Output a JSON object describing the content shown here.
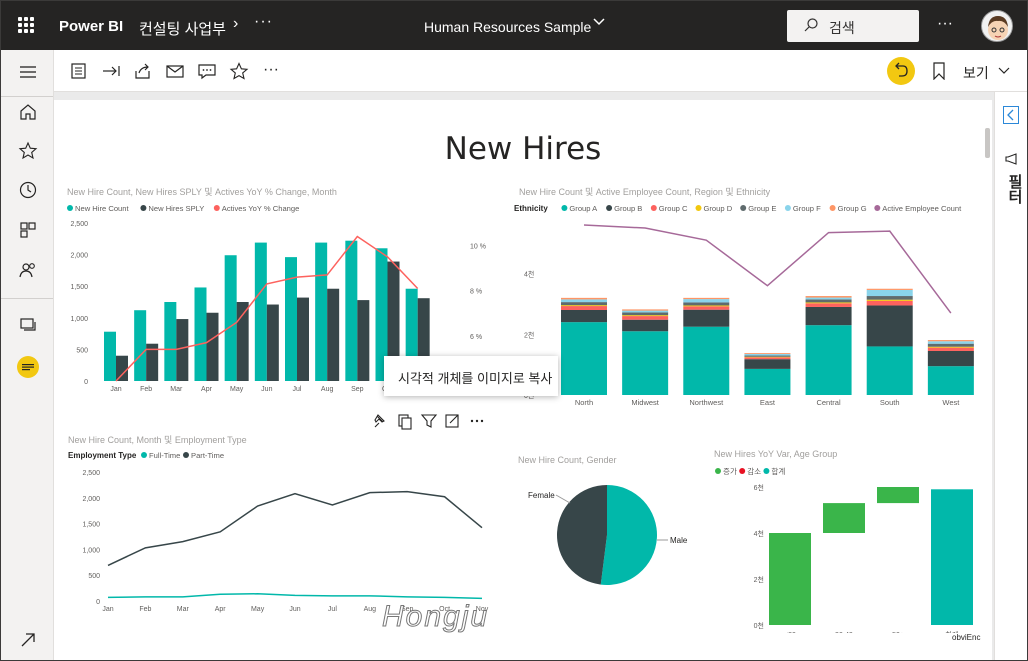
{
  "topbar": {
    "brand": "Power BI",
    "workspace": "컨설팅 사업부",
    "more": "···",
    "report_title": "Human Resources Sample",
    "search_placeholder": "검색",
    "more_right": "···"
  },
  "toolbar": {
    "view_label": "보기",
    "more": "···"
  },
  "right_panel": {
    "filters_label": "필터"
  },
  "page": {
    "title": "New Hires",
    "tooltip": "시각적 개체를 이미지로 복사",
    "watermark": "Hongju",
    "footer_brand": "obviEnc"
  },
  "colors": {
    "teal": "#01b8aa",
    "dark": "#374649",
    "red": "#fd625e",
    "yellow": "#f2c80f",
    "purple": "#8c5c94",
    "green": "#3ab54a",
    "decrease_red": "#e81123"
  },
  "visual1": {
    "title": "New Hire Count, New Hires SPLY 및 Actives YoY % Change, Month",
    "legend": [
      "New Hire Count",
      "New Hires SPLY",
      "Actives YoY % Change"
    ],
    "y_ticks": [
      "2,500",
      "2,000",
      "1,500",
      "1,000",
      "500",
      "0"
    ],
    "y2_ticks": [
      "10 %",
      "8 %",
      "6 %"
    ]
  },
  "visual2": {
    "title": "New Hire Count 및 Active Employee Count, Region 및 Ethnicity",
    "legend_title": "Ethnicity",
    "legend": [
      "Group A",
      "Group B",
      "Group C",
      "Group D",
      "Group E",
      "Group F",
      "Group G",
      "Active Employee Count"
    ],
    "y_ticks": [
      "4천",
      "2천",
      "0천"
    ]
  },
  "visual3": {
    "title": "New Hire Count, Month 및 Employment Type",
    "legend_title": "Employment Type",
    "legend": [
      "Full-Time",
      "Part-Time"
    ],
    "y_ticks": [
      "2,500",
      "2,000",
      "1,500",
      "1,000",
      "500",
      "0"
    ]
  },
  "visual4": {
    "title": "New Hire Count, Gender",
    "labels": [
      "Female",
      "Male"
    ]
  },
  "visual5": {
    "title": "New Hires YoY Var, Age Group",
    "legend": [
      "증가",
      "감소",
      "합계"
    ],
    "y_ticks": [
      "6천",
      "4천",
      "2천",
      "0천"
    ]
  },
  "chart_data": [
    {
      "type": "bar",
      "title": "New Hire Count, New Hires SPLY 및 Actives YoY % Change, Month",
      "categories": [
        "Jan",
        "Feb",
        "Mar",
        "Apr",
        "May",
        "Jun",
        "Jul",
        "Aug",
        "Sep",
        "Oct",
        "Nov",
        "Dec"
      ],
      "ylim": [
        0,
        2500
      ],
      "y2lim": [
        4,
        11
      ],
      "series": [
        {
          "name": "New Hire Count",
          "values": [
            780,
            1120,
            1250,
            1480,
            1990,
            2190,
            1960,
            2190,
            2220,
            2100,
            1460,
            null
          ]
        },
        {
          "name": "New Hires SPLY",
          "values": [
            400,
            590,
            980,
            1080,
            1250,
            1210,
            1320,
            1460,
            1280,
            1890,
            1310,
            null
          ]
        },
        {
          "name": "Actives YoY % Change",
          "values": [
            4.0,
            5.4,
            5.4,
            5.7,
            6.6,
            8.3,
            8.6,
            8.7,
            10.4,
            9.5,
            8.1,
            null
          ]
        }
      ]
    },
    {
      "type": "bar",
      "title": "New Hire Count 및 Active Employee Count, Region 및 Ethnicity",
      "categories": [
        "North",
        "Midwest",
        "Northwest",
        "East",
        "Central",
        "South",
        "West"
      ],
      "ylim": [
        0,
        5600
      ],
      "series": [
        {
          "name": "Group A",
          "values": [
            2400,
            2100,
            2250,
            860,
            2300,
            1600,
            950
          ]
        },
        {
          "name": "Group B",
          "values": [
            400,
            380,
            560,
            320,
            600,
            1350,
            500
          ]
        },
        {
          "name": "Group C",
          "values": [
            130,
            120,
            110,
            60,
            120,
            150,
            110
          ]
        },
        {
          "name": "Group D",
          "values": [
            30,
            30,
            30,
            20,
            30,
            40,
            30
          ]
        },
        {
          "name": "Group E",
          "values": [
            100,
            90,
            100,
            40,
            100,
            120,
            100
          ]
        },
        {
          "name": "Group F",
          "values": [
            90,
            60,
            110,
            50,
            60,
            200,
            80
          ]
        },
        {
          "name": "Group G",
          "values": [
            50,
            40,
            40,
            30,
            50,
            40,
            40
          ]
        },
        {
          "name": "Active Employee Count",
          "values": [
            5600,
            5500,
            5100,
            3600,
            5350,
            5400,
            2700
          ]
        }
      ]
    },
    {
      "type": "line",
      "title": "New Hire Count, Month 및 Employment Type",
      "categories": [
        "Jan",
        "Feb",
        "Mar",
        "Apr",
        "May",
        "Jun",
        "Jul",
        "Aug",
        "Sep",
        "Oct",
        "Nov"
      ],
      "ylim": [
        0,
        2500
      ],
      "series": [
        {
          "name": "Full-Time",
          "values": [
            690,
            1030,
            1150,
            1340,
            1840,
            2080,
            1860,
            2100,
            2120,
            2020,
            1420
          ]
        },
        {
          "name": "Part-Time",
          "values": [
            70,
            80,
            80,
            130,
            140,
            110,
            100,
            100,
            80,
            70,
            50
          ]
        }
      ]
    },
    {
      "type": "pie",
      "title": "New Hire Count, Gender",
      "categories": [
        "Female",
        "Male"
      ],
      "values": [
        48,
        52
      ]
    },
    {
      "type": "bar",
      "title": "New Hires YoY Var, Age Group",
      "categories": [
        "<30",
        "30-49",
        "50+",
        "합계"
      ],
      "ylim": [
        0,
        6000
      ],
      "series": [
        {
          "name": "증가",
          "values": [
            4000,
            1300,
            700,
            null
          ]
        },
        {
          "name": "합계",
          "values": [
            null,
            null,
            null,
            5900
          ]
        }
      ]
    }
  ]
}
